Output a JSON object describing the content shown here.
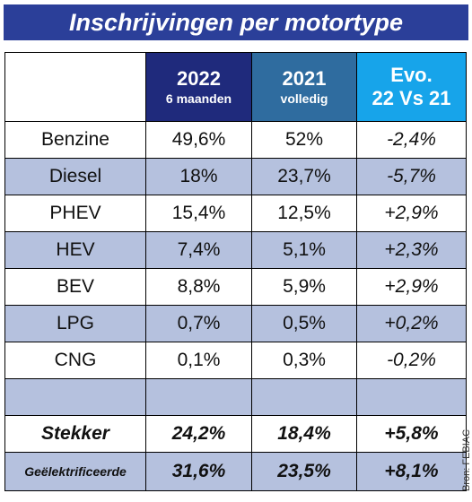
{
  "title": "Inschrijvingen per motortype",
  "header": [
    {
      "main": "2022",
      "sub": "6 maanden"
    },
    {
      "main": "2021",
      "sub": "volledig"
    },
    {
      "main": "Evo.",
      "sub": "22 Vs 21"
    }
  ],
  "rows": [
    [
      "Benzine",
      "49,6%",
      "52%",
      "-2,4%"
    ],
    [
      "Diesel",
      "18%",
      "23,7%",
      "-5,7%"
    ],
    [
      "PHEV",
      "15,4%",
      "12,5%",
      "+2,9%"
    ],
    [
      "HEV",
      "7,4%",
      "5,1%",
      "+2,3%"
    ],
    [
      "BEV",
      "8,8%",
      "5,9%",
      "+2,9%"
    ],
    [
      "LPG",
      "0,7%",
      "0,5%",
      "+0,2%"
    ],
    [
      "CNG",
      "0,1%",
      "0,3%",
      "-0,2%"
    ]
  ],
  "totals": [
    [
      "Stekker",
      "24,2%",
      "18,4%",
      "+5,8%"
    ],
    [
      "Geëlektrificeerde",
      "31,6%",
      "23,5%",
      "+8,1%"
    ]
  ],
  "source": "Bron: FEBIAC"
}
